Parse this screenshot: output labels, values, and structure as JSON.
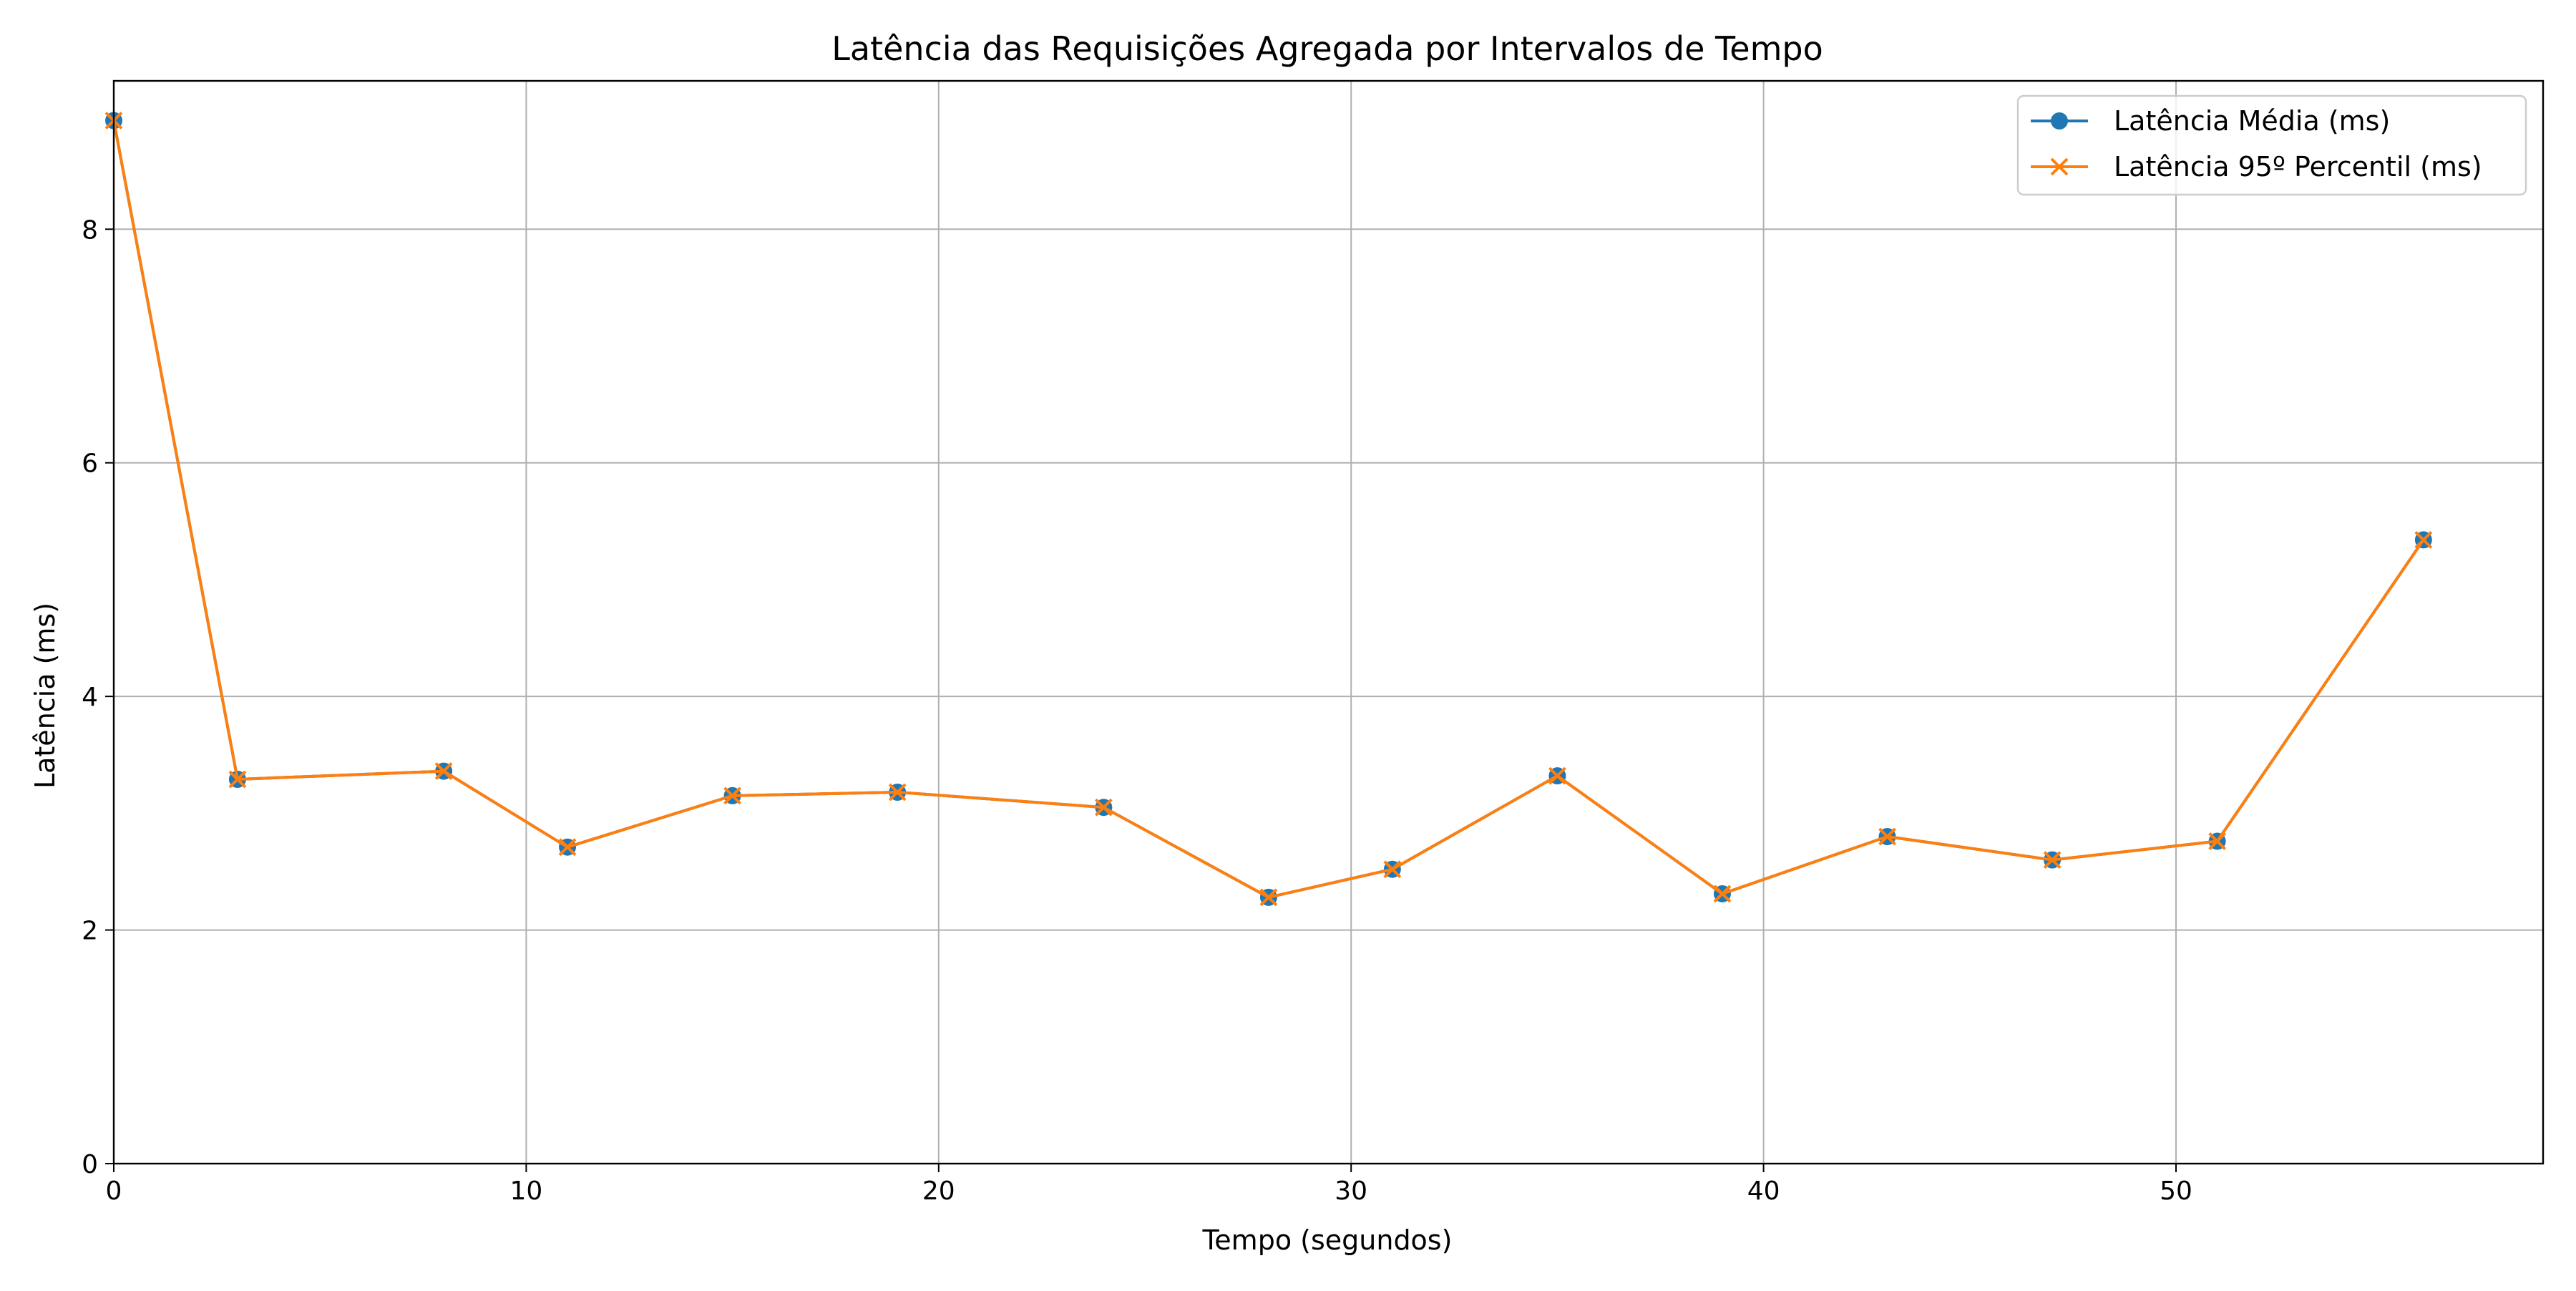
{
  "chart_data": {
    "type": "line",
    "title": "Latência das Requisições Agregada por Intervalos de Tempo",
    "xlabel": "Tempo (segundos)",
    "ylabel": "Latência (ms)",
    "xlim": [
      0,
      58.9
    ],
    "ylim": [
      0,
      9.27
    ],
    "xticks": [
      0,
      10,
      20,
      30,
      40,
      50
    ],
    "yticks": [
      0,
      2,
      4,
      6,
      8
    ],
    "grid": true,
    "legend_position": "top-right",
    "x": [
      0,
      3,
      8,
      11,
      15,
      19,
      24,
      28,
      31,
      35,
      39,
      43,
      47,
      51,
      56
    ],
    "series": [
      {
        "name": "Latência Média (ms)",
        "color": "#1f77b4",
        "marker": "circle",
        "values": [
          8.93,
          3.29,
          3.36,
          2.71,
          3.15,
          3.18,
          3.05,
          2.28,
          2.52,
          3.32,
          2.31,
          2.8,
          2.6,
          2.76,
          5.34
        ]
      },
      {
        "name": "Latência 95º Percentil (ms)",
        "color": "#ff7f0e",
        "marker": "x",
        "values": [
          8.93,
          3.29,
          3.36,
          2.71,
          3.15,
          3.18,
          3.05,
          2.28,
          2.52,
          3.32,
          2.31,
          2.8,
          2.6,
          2.76,
          5.34
        ]
      }
    ]
  }
}
